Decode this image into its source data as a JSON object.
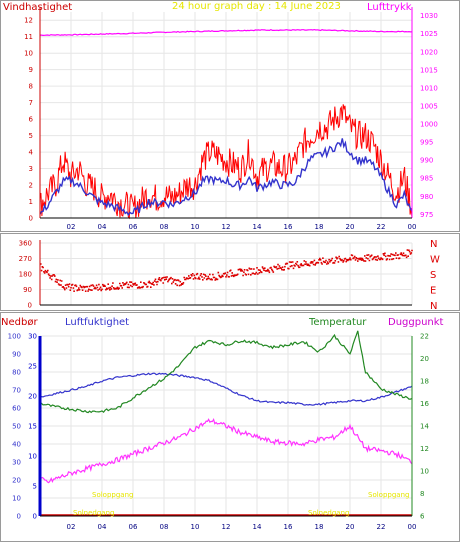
{
  "colors": {
    "wind_axis": "#cc0000",
    "pressure": "#ff00ff",
    "title": "#e6e600",
    "wind_gust": "#ff0000",
    "wind_avg": "#3333cc",
    "direction": "#dd0000",
    "rain": "#0000cc",
    "humidity": "#3333cc",
    "temperature": "#228822",
    "dewpoint": "#ff33ff",
    "sun": "#e6e600",
    "grid": "#e6e6e6"
  },
  "chart_data": [
    {
      "type": "line",
      "title": "24 hour graph day : 14 June 2023",
      "left_axis_label": "Vindhastighet",
      "right_axis_label": "Lufttrykk",
      "x_ticks": [
        "02",
        "04",
        "06",
        "08",
        "10",
        "12",
        "14",
        "16",
        "18",
        "20",
        "22",
        "00"
      ],
      "y_left_ticks": [
        "0",
        "1",
        "2",
        "3",
        "4",
        "5",
        "6",
        "7",
        "8",
        "9",
        "10",
        "11",
        "12"
      ],
      "y_left_range": [
        0,
        12.5
      ],
      "y_right_ticks": [
        "975",
        "980",
        "985",
        "990",
        "995",
        "1000",
        "1005",
        "1010",
        "1015",
        "1020",
        "1025",
        "1030"
      ],
      "y_right_range": [
        974,
        1031
      ],
      "x_range_hours": [
        0,
        24
      ],
      "grid": true,
      "series": [
        {
          "key": "pressure",
          "axis": "right",
          "x": [
            0,
            2,
            4,
            6,
            8,
            10,
            12,
            14,
            16,
            18,
            20,
            22,
            24
          ],
          "y": [
            1024.6,
            1024.7,
            1024.9,
            1025.1,
            1025.4,
            1025.6,
            1025.8,
            1026.0,
            1026.0,
            1026.0,
            1025.8,
            1025.6,
            1025.6
          ]
        },
        {
          "key": "gust",
          "axis": "left",
          "x": [
            0,
            0.5,
            1,
            1.5,
            2,
            2.5,
            3,
            3.5,
            4,
            4.5,
            5,
            5.5,
            6,
            6.5,
            7,
            7.5,
            8,
            8.5,
            9,
            9.5,
            10,
            10.5,
            11,
            11.5,
            12,
            12.5,
            13,
            13.5,
            14,
            14.5,
            15,
            15.5,
            16,
            16.5,
            17,
            17.5,
            18,
            18.5,
            19,
            19.5,
            20,
            20.5,
            21,
            21.5,
            22,
            22.5,
            23,
            23.5,
            24
          ],
          "y": [
            0.8,
            1.5,
            2.0,
            3.5,
            2.5,
            3.0,
            2.0,
            1.8,
            1.2,
            1.5,
            1.0,
            0.8,
            0.5,
            1.0,
            1.5,
            1.2,
            1.4,
            1.2,
            1.5,
            2.0,
            2.0,
            3.5,
            4.0,
            3.8,
            3.5,
            3.2,
            3.0,
            4.0,
            2.5,
            3.0,
            3.2,
            3.0,
            3.0,
            3.5,
            4.5,
            5.0,
            5.5,
            5.5,
            6.0,
            6.5,
            5.5,
            5.0,
            5.0,
            4.5,
            3.5,
            2.5,
            1.5,
            2.5,
            0.5
          ]
        },
        {
          "key": "wind_avg",
          "axis": "left",
          "x": [
            0,
            0.5,
            1,
            1.5,
            2,
            2.5,
            3,
            3.5,
            4,
            4.5,
            5,
            5.5,
            6,
            6.5,
            7,
            7.5,
            8,
            8.5,
            9,
            9.5,
            10,
            10.5,
            11,
            11.5,
            12,
            12.5,
            13,
            13.5,
            14,
            14.5,
            15,
            15.5,
            16,
            16.5,
            17,
            17.5,
            18,
            18.5,
            19,
            19.5,
            20,
            20.5,
            21,
            21.5,
            22,
            22.5,
            23,
            23.5,
            24
          ],
          "y": [
            0.2,
            0.8,
            1.5,
            2.2,
            2.3,
            2.0,
            1.6,
            1.2,
            0.9,
            0.8,
            0.6,
            0.4,
            0.3,
            0.6,
            1.0,
            0.9,
            1.0,
            0.8,
            1.0,
            1.3,
            1.5,
            2.2,
            2.4,
            2.2,
            2.3,
            2.0,
            2.0,
            2.4,
            1.8,
            2.0,
            2.2,
            2.0,
            2.0,
            2.2,
            3.0,
            3.6,
            3.8,
            4.0,
            4.3,
            4.6,
            4.0,
            3.5,
            3.5,
            3.2,
            2.5,
            1.6,
            0.8,
            1.4,
            0.2
          ]
        }
      ]
    },
    {
      "type": "scatter",
      "title": "",
      "y_left_ticks": [
        "360",
        "270",
        "180",
        "90",
        "0"
      ],
      "y_left_range": [
        0,
        360
      ],
      "y_right_labels": [
        "N",
        "W",
        "S",
        "E",
        "N"
      ],
      "x_range_hours": [
        0,
        24
      ],
      "grid": true,
      "series": [
        {
          "key": "direction",
          "x": [
            0,
            0.5,
            1,
            1.5,
            2,
            3,
            4,
            5,
            6,
            7,
            8,
            9,
            10,
            11,
            12,
            13,
            14,
            15,
            16,
            17,
            18,
            19,
            20,
            21,
            22,
            23,
            23.5,
            24
          ],
          "y": [
            220,
            180,
            150,
            110,
            100,
            95,
            105,
            110,
            115,
            120,
            150,
            130,
            170,
            160,
            180,
            190,
            200,
            210,
            230,
            240,
            250,
            260,
            270,
            270,
            280,
            285,
            290,
            320
          ]
        }
      ]
    },
    {
      "type": "line",
      "title": "",
      "legend": [
        "Nedbør",
        "Luftfuktighet",
        "Temperatur",
        "Duggpunkt"
      ],
      "annotations": [
        "Soloppgang",
        "Solnedgang",
        "Soloppgang"
      ],
      "x_ticks": [
        "02",
        "04",
        "06",
        "08",
        "10",
        "12",
        "14",
        "16",
        "18",
        "20",
        "22",
        "00"
      ],
      "y_rain_ticks": [
        "0",
        "5",
        "10",
        "15",
        "20",
        "25",
        "30"
      ],
      "y_rain_range": [
        0,
        30
      ],
      "y_humidity_ticks": [
        "0",
        "10",
        "20",
        "30",
        "40",
        "50",
        "60",
        "70",
        "80",
        "90",
        "100"
      ],
      "y_humidity_range": [
        0,
        100
      ],
      "y_temp_ticks": [
        "6",
        "8",
        "10",
        "12",
        "14",
        "16",
        "18",
        "20",
        "22"
      ],
      "y_temp_range": [
        6,
        22
      ],
      "x_range_hours": [
        0,
        24
      ],
      "grid": true,
      "series": [
        {
          "key": "rain",
          "axis": "rain",
          "x": [
            0,
            24
          ],
          "y": [
            0,
            0
          ]
        },
        {
          "key": "humidity",
          "axis": "humidity",
          "x": [
            0,
            1,
            2,
            3,
            4,
            5,
            6,
            7,
            8,
            9,
            10,
            11,
            12,
            13,
            14,
            15,
            16,
            17,
            18,
            19,
            20,
            21,
            22,
            23,
            24
          ],
          "y": [
            66,
            68,
            70,
            72,
            75,
            77,
            78,
            79,
            79,
            78,
            77,
            75,
            71,
            67,
            64,
            63,
            63,
            62,
            62,
            63,
            64,
            64,
            66,
            69,
            72
          ]
        },
        {
          "key": "temperature",
          "axis": "temp",
          "x": [
            0,
            1,
            2,
            3,
            4,
            5,
            6,
            7,
            8,
            9,
            10,
            11,
            12,
            13,
            14,
            15,
            16,
            17,
            18,
            19,
            20,
            20.5,
            21,
            22,
            23,
            24
          ],
          "y": [
            16.0,
            15.7,
            15.5,
            15.3,
            15.3,
            15.6,
            16.5,
            17.4,
            18.2,
            19.4,
            21.0,
            21.6,
            21.2,
            21.6,
            21.4,
            21.0,
            21.2,
            21.5,
            20.6,
            22.0,
            20.4,
            22.4,
            18.8,
            17.3,
            16.8,
            16.4
          ]
        },
        {
          "key": "dewpoint",
          "axis": "temp",
          "x": [
            0,
            0.5,
            1,
            2,
            3,
            4,
            5,
            6,
            7,
            8,
            9,
            10,
            11,
            12,
            13,
            14,
            15,
            16,
            17,
            18,
            19,
            20,
            21,
            22,
            23,
            24
          ],
          "y": [
            9.3,
            9.0,
            9.3,
            9.8,
            10.2,
            10.6,
            11.0,
            11.5,
            12.0,
            12.5,
            13.0,
            13.8,
            14.5,
            14.0,
            13.4,
            13.0,
            12.6,
            12.5,
            12.4,
            12.8,
            13.0,
            14.0,
            12.0,
            11.8,
            11.5,
            10.8
          ]
        }
      ]
    }
  ]
}
